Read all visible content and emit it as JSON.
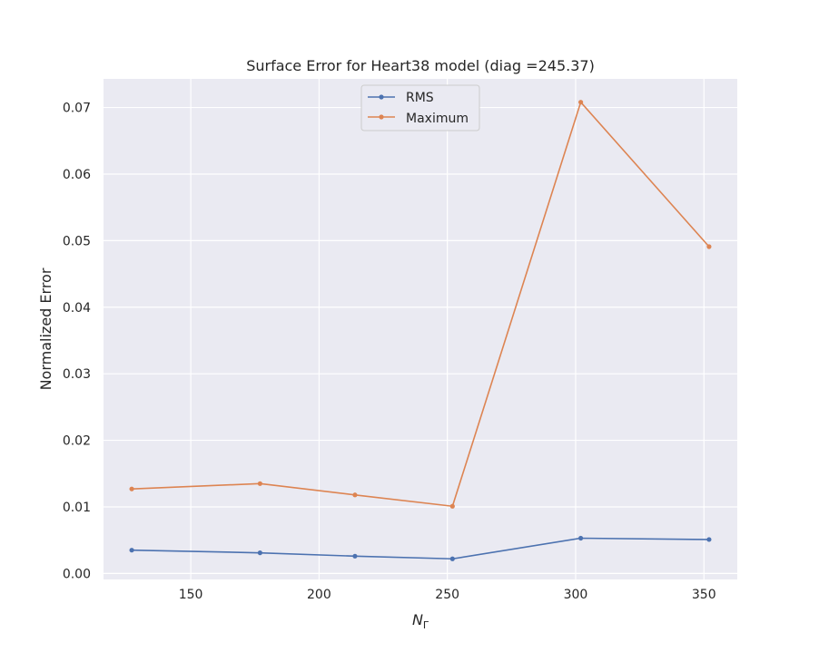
{
  "chart_data": {
    "type": "line",
    "title": "Surface Error for Heart38 model (diag =245.37)",
    "xlabel_main": "N",
    "xlabel_sub": "Γ",
    "ylabel": "Normalized Error",
    "x": [
      127,
      177,
      214,
      252,
      302,
      352
    ],
    "xlim": [
      116,
      363
    ],
    "ylim": [
      -0.0009,
      0.0743
    ],
    "xticks": [
      150,
      200,
      250,
      300,
      350
    ],
    "xtick_labels": [
      "150",
      "200",
      "250",
      "300",
      "350"
    ],
    "yticks": [
      0.0,
      0.01,
      0.02,
      0.03,
      0.04,
      0.05,
      0.06,
      0.07
    ],
    "ytick_labels": [
      "0.00",
      "0.01",
      "0.02",
      "0.03",
      "0.04",
      "0.05",
      "0.06",
      "0.07"
    ],
    "grid": true,
    "legend_position": "top-center",
    "background": "#eaeaf2",
    "series": [
      {
        "name": "RMS",
        "color": "#4c72b0",
        "values": [
          0.0035,
          0.0031,
          0.0026,
          0.0022,
          0.0053,
          0.0051
        ]
      },
      {
        "name": "Maximum",
        "color": "#dd8452",
        "values": [
          0.0127,
          0.0135,
          0.0118,
          0.0101,
          0.0708,
          0.0491
        ]
      }
    ]
  }
}
